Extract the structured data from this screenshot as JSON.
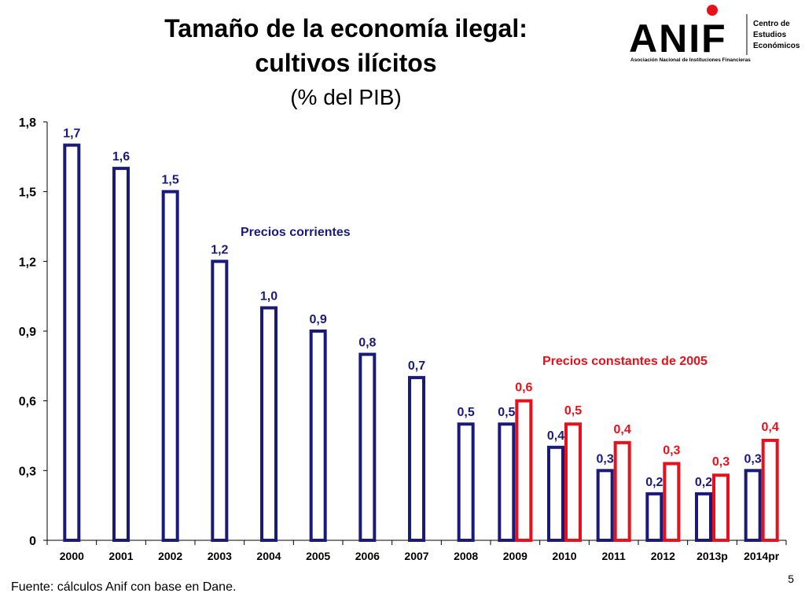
{
  "title_line1": "Tamaño de la economía ilegal:",
  "title_line2": "cultivos ilícitos",
  "title_line3": "(% del PIB)",
  "logo": {
    "brand": "ANIF",
    "subtitle": "Asociación Nacional de Instituciones Financieras",
    "side_line1": "Centro de",
    "side_line2": "Estudios",
    "side_line3": "Económicos"
  },
  "footer": "Fuente: cálculos Anif con base en Dane.",
  "page_number": "5",
  "colors": {
    "corrientes": "#1a1a7a",
    "constantes": "#e8101a",
    "axis": "#000000"
  },
  "chart_data": {
    "type": "bar",
    "categories": [
      "2000",
      "2001",
      "2002",
      "2003",
      "2004",
      "2005",
      "2006",
      "2007",
      "2008",
      "2009",
      "2010",
      "2011",
      "2012",
      "2013p",
      "2014pr"
    ],
    "series": [
      {
        "name": "Precios corrientes",
        "values": [
          1.7,
          1.6,
          1.5,
          1.2,
          1.0,
          0.9,
          0.8,
          0.7,
          0.5,
          0.5,
          0.4,
          0.3,
          0.2,
          0.2,
          0.3
        ],
        "labels": [
          "1,7",
          "1,6",
          "1,5",
          "1,2",
          "1,0",
          "0,9",
          "0,8",
          "0,7",
          "0,5",
          "0,5",
          "0,4",
          "0,3",
          "0,2",
          "0,2",
          "0,3"
        ]
      },
      {
        "name": "Precios constantes de 2005",
        "values": [
          null,
          null,
          null,
          null,
          null,
          null,
          null,
          null,
          null,
          0.6,
          0.5,
          0.42,
          0.33,
          0.28,
          0.43
        ],
        "labels": [
          null,
          null,
          null,
          null,
          null,
          null,
          null,
          null,
          null,
          "0,6",
          "0,5",
          "0,4",
          "0,3",
          "0,3",
          "0,4"
        ]
      }
    ],
    "ylim": [
      0,
      1.8
    ],
    "yticks": [
      0,
      0.3,
      0.6,
      0.9,
      1.2,
      1.5,
      1.8
    ],
    "ytick_labels": [
      "0",
      "0,3",
      "0,6",
      "0,9",
      "1,2",
      "1,5",
      "1,8"
    ],
    "legend_corrientes": "Precios corrientes",
    "legend_constantes": "Precios constantes de 2005"
  }
}
